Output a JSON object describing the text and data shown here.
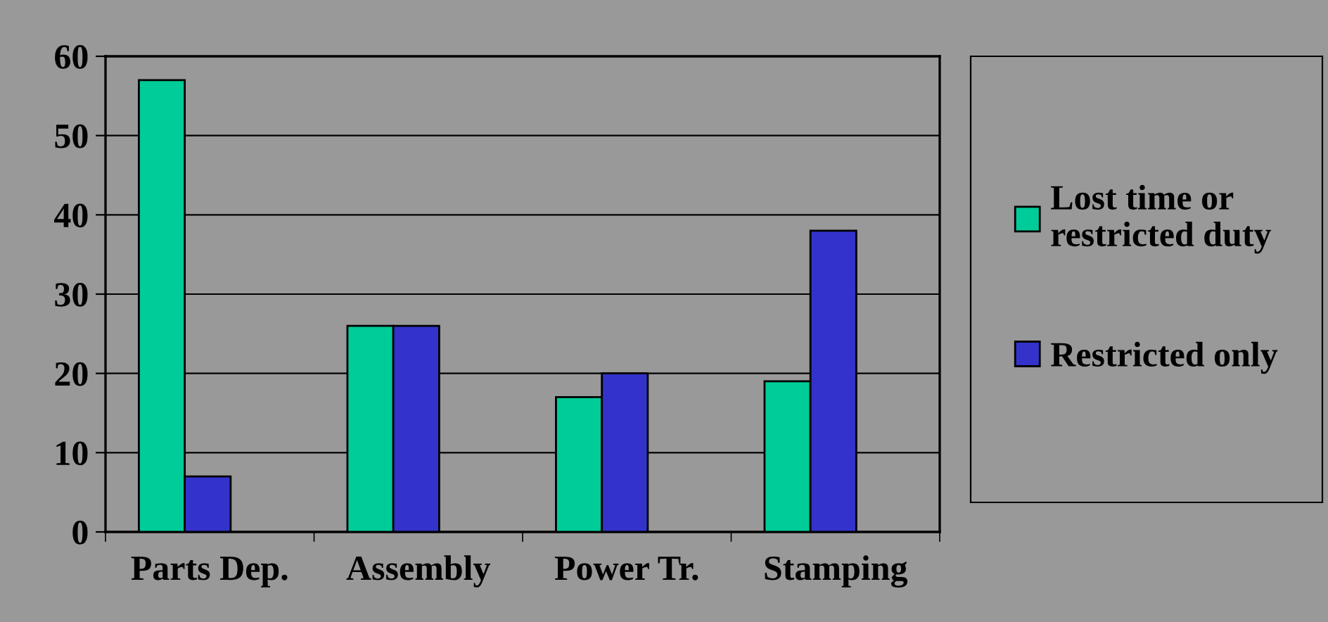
{
  "chart_data": {
    "type": "bar",
    "categories": [
      "Parts Dep.",
      "Assembly",
      "Power Tr.",
      "Stamping"
    ],
    "series": [
      {
        "name": "Lost time or\nrestricted duty",
        "color": "#00cc99",
        "values": [
          57,
          26,
          17,
          19
        ]
      },
      {
        "name": "Restricted only",
        "color": "#3333cc",
        "values": [
          7,
          26,
          20,
          38
        ]
      }
    ],
    "ylim": [
      0,
      60
    ],
    "yticks": [
      0,
      10,
      20,
      30,
      40,
      50,
      60
    ],
    "grid": "y",
    "legend": "right"
  }
}
